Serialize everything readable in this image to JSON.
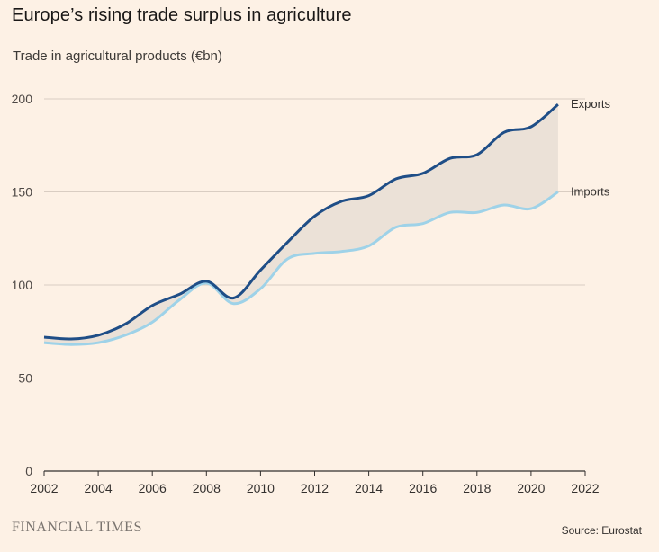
{
  "header": {
    "title": "Europe’s rising trade surplus in agriculture",
    "subtitle": "Trade in agricultural products (€bn)"
  },
  "footer": {
    "brand": "FINANCIAL TIMES",
    "source": "Source: Eurostat"
  },
  "colors": {
    "background": "#fdf1e5",
    "exports": "#1f4e87",
    "imports": "#9ed2e8",
    "surplus_fill": "#ebe1d7",
    "grid": "#d9cdc2",
    "axis": "#33302e"
  },
  "chart_data": {
    "type": "line",
    "title": "Europe’s rising trade surplus in agriculture",
    "subtitle": "Trade in agricultural products (€bn)",
    "xlabel": "",
    "ylabel": "",
    "xlim": [
      2002,
      2022
    ],
    "ylim": [
      0,
      200
    ],
    "x_ticks": [
      2002,
      2004,
      2006,
      2008,
      2010,
      2012,
      2014,
      2016,
      2018,
      2020,
      2022
    ],
    "y_ticks": [
      0,
      50,
      100,
      150,
      200
    ],
    "grid": true,
    "shaded_area_between_series": true,
    "x": [
      2002,
      2003,
      2004,
      2005,
      2006,
      2007,
      2008,
      2009,
      2010,
      2011,
      2012,
      2013,
      2014,
      2015,
      2016,
      2017,
      2018,
      2019,
      2020,
      2021
    ],
    "series": [
      {
        "name": "Exports",
        "values": [
          72,
          71,
          73,
          79,
          89,
          95,
          102,
          93,
          108,
          123,
          137,
          145,
          148,
          157,
          160,
          168,
          170,
          182,
          185,
          197
        ]
      },
      {
        "name": "Imports",
        "values": [
          69,
          68,
          69,
          73,
          80,
          92,
          101,
          90,
          98,
          114,
          117,
          118,
          121,
          131,
          133,
          139,
          139,
          143,
          141,
          150
        ]
      }
    ]
  }
}
